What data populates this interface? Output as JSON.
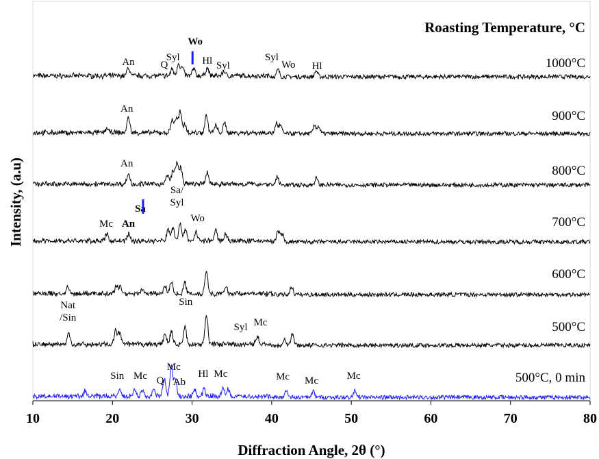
{
  "chart_data": {
    "type": "line",
    "title": "",
    "legend_title": "Roasting Temperature, °C",
    "xlabel": "Diffraction Angle, 2θ (°)",
    "ylabel": "Intensity, (a.u)",
    "xlim": [
      10,
      80
    ],
    "x_ticks": [
      10,
      20,
      30,
      40,
      50,
      60,
      70,
      80
    ],
    "x_tick_labels": [
      "10",
      "20",
      "30",
      "40",
      "50",
      "60",
      "70",
      "80"
    ],
    "y_ticks_shown": false,
    "grid": false,
    "series": [
      {
        "name": "1000°C",
        "color": "#000000",
        "peaks": [
          {
            "x": 22.0,
            "h": 0.35
          },
          {
            "x": 27.5,
            "h": 0.3
          },
          {
            "x": 28.3,
            "h": 0.55
          },
          {
            "x": 28.8,
            "h": 0.35
          },
          {
            "x": 30.2,
            "h": 0.3
          },
          {
            "x": 31.9,
            "h": 0.35
          },
          {
            "x": 34.0,
            "h": 0.2
          },
          {
            "x": 40.8,
            "h": 0.3
          },
          {
            "x": 45.6,
            "h": 0.25
          }
        ],
        "annotations": [
          {
            "text": "An",
            "x": 22.0
          },
          {
            "text": "Q",
            "x": 26.5
          },
          {
            "text": "Syl",
            "x": 27.6
          },
          {
            "text": "Wo",
            "x": 30.4,
            "bold": true,
            "marker": true
          },
          {
            "text": "Hl",
            "x": 31.9
          },
          {
            "text": "Syl",
            "x": 33.9
          },
          {
            "text": "Syl",
            "x": 40.0
          },
          {
            "text": "Wo",
            "x": 42.1
          },
          {
            "text": "Hl",
            "x": 45.7
          }
        ]
      },
      {
        "name": "900°C",
        "color": "#000000",
        "peaks": [
          {
            "x": 19.3,
            "h": 0.2
          },
          {
            "x": 22.0,
            "h": 0.65
          },
          {
            "x": 27.5,
            "h": 0.55
          },
          {
            "x": 28.0,
            "h": 0.6
          },
          {
            "x": 28.5,
            "h": 0.9
          },
          {
            "x": 29.1,
            "h": 0.4
          },
          {
            "x": 31.8,
            "h": 0.75
          },
          {
            "x": 33.0,
            "h": 0.3
          },
          {
            "x": 34.1,
            "h": 0.4
          },
          {
            "x": 40.6,
            "h": 0.45
          },
          {
            "x": 41.1,
            "h": 0.35
          },
          {
            "x": 45.4,
            "h": 0.35
          },
          {
            "x": 45.9,
            "h": 0.3
          }
        ],
        "annotations": [
          {
            "text": "An",
            "x": 21.8
          }
        ]
      },
      {
        "name": "800°C",
        "color": "#000000",
        "peaks": [
          {
            "x": 22.0,
            "h": 0.45
          },
          {
            "x": 26.9,
            "h": 0.4
          },
          {
            "x": 27.6,
            "h": 0.6
          },
          {
            "x": 28.1,
            "h": 0.9
          },
          {
            "x": 28.6,
            "h": 0.7
          },
          {
            "x": 31.9,
            "h": 0.5
          },
          {
            "x": 40.7,
            "h": 0.35
          },
          {
            "x": 45.6,
            "h": 0.3
          }
        ],
        "annotations": [
          {
            "text": "An",
            "x": 21.8
          }
        ]
      },
      {
        "name": "700°C",
        "color": "#000000",
        "peaks": [
          {
            "x": 19.3,
            "h": 0.3
          },
          {
            "x": 22.0,
            "h": 0.3
          },
          {
            "x": 27.0,
            "h": 0.5
          },
          {
            "x": 27.6,
            "h": 0.6
          },
          {
            "x": 28.5,
            "h": 0.8
          },
          {
            "x": 29.2,
            "h": 0.5
          },
          {
            "x": 30.5,
            "h": 0.4
          },
          {
            "x": 33.0,
            "h": 0.45
          },
          {
            "x": 34.2,
            "h": 0.35
          },
          {
            "x": 40.8,
            "h": 0.45
          },
          {
            "x": 41.3,
            "h": 0.35
          }
        ],
        "annotations": [
          {
            "text": "Mc",
            "x": 19.2
          },
          {
            "text": "An",
            "x": 22.0,
            "bold": true
          },
          {
            "text": "Sa",
            "x": 23.5,
            "bold": true,
            "marker": true
          },
          {
            "text": "Sa/",
            "x": 28.1
          },
          {
            "text": "Syl",
            "x": 28.1
          },
          {
            "text": "Wo",
            "x": 30.7
          }
        ]
      },
      {
        "name": "600°C",
        "color": "#000000",
        "peaks": [
          {
            "x": 14.4,
            "h": 0.25
          },
          {
            "x": 20.5,
            "h": 0.35
          },
          {
            "x": 21.0,
            "h": 0.3
          },
          {
            "x": 23.7,
            "h": 0.2
          },
          {
            "x": 26.6,
            "h": 0.35
          },
          {
            "x": 27.4,
            "h": 0.5
          },
          {
            "x": 29.1,
            "h": 0.45
          },
          {
            "x": 31.8,
            "h": 1.0
          },
          {
            "x": 34.3,
            "h": 0.25
          },
          {
            "x": 42.5,
            "h": 0.35
          }
        ],
        "annotations": []
      },
      {
        "name": "500°C",
        "color": "#000000",
        "peaks": [
          {
            "x": 14.5,
            "h": 0.45
          },
          {
            "x": 20.4,
            "h": 0.6
          },
          {
            "x": 20.9,
            "h": 0.5
          },
          {
            "x": 26.6,
            "h": 0.45
          },
          {
            "x": 27.4,
            "h": 0.55
          },
          {
            "x": 29.1,
            "h": 0.75
          },
          {
            "x": 31.8,
            "h": 1.3
          },
          {
            "x": 38.2,
            "h": 0.35
          },
          {
            "x": 42.6,
            "h": 0.5
          },
          {
            "x": 41.6,
            "h": 0.3
          }
        ],
        "annotations": [
          {
            "text": "Nat",
            "x": 14.4
          },
          {
            "text": "/Sin",
            "x": 14.4
          },
          {
            "text": "Sin",
            "x": 29.2
          },
          {
            "text": "Syl",
            "x": 36.1
          },
          {
            "text": "Mc",
            "x": 38.6
          }
        ]
      },
      {
        "name": "500°C, 0 min",
        "color": "#1a1aff",
        "peaks": [
          {
            "x": 16.6,
            "h": 0.25
          },
          {
            "x": 20.9,
            "h": 0.3
          },
          {
            "x": 22.8,
            "h": 0.3
          },
          {
            "x": 23.8,
            "h": 0.3
          },
          {
            "x": 25.2,
            "h": 0.3
          },
          {
            "x": 26.5,
            "h": 0.75
          },
          {
            "x": 27.4,
            "h": 1.3
          },
          {
            "x": 27.9,
            "h": 0.7
          },
          {
            "x": 30.3,
            "h": 0.3
          },
          {
            "x": 31.5,
            "h": 0.3
          },
          {
            "x": 33.9,
            "h": 0.35
          },
          {
            "x": 34.5,
            "h": 0.3
          },
          {
            "x": 41.8,
            "h": 0.3
          },
          {
            "x": 45.2,
            "h": 0.25
          },
          {
            "x": 50.5,
            "h": 0.3
          }
        ],
        "annotations": [
          {
            "text": "Sin",
            "x": 20.6
          },
          {
            "text": "Mc",
            "x": 23.5
          },
          {
            "text": "Q",
            "x": 26.0
          },
          {
            "text": "Mc",
            "x": 27.7
          },
          {
            "text": "Ab",
            "x": 28.4
          },
          {
            "text": "Hl",
            "x": 31.4
          },
          {
            "text": "Mc",
            "x": 33.6
          },
          {
            "text": "Mc",
            "x": 41.4
          },
          {
            "text": "Mc",
            "x": 45.0
          },
          {
            "text": "Mc",
            "x": 50.3
          }
        ]
      }
    ]
  }
}
